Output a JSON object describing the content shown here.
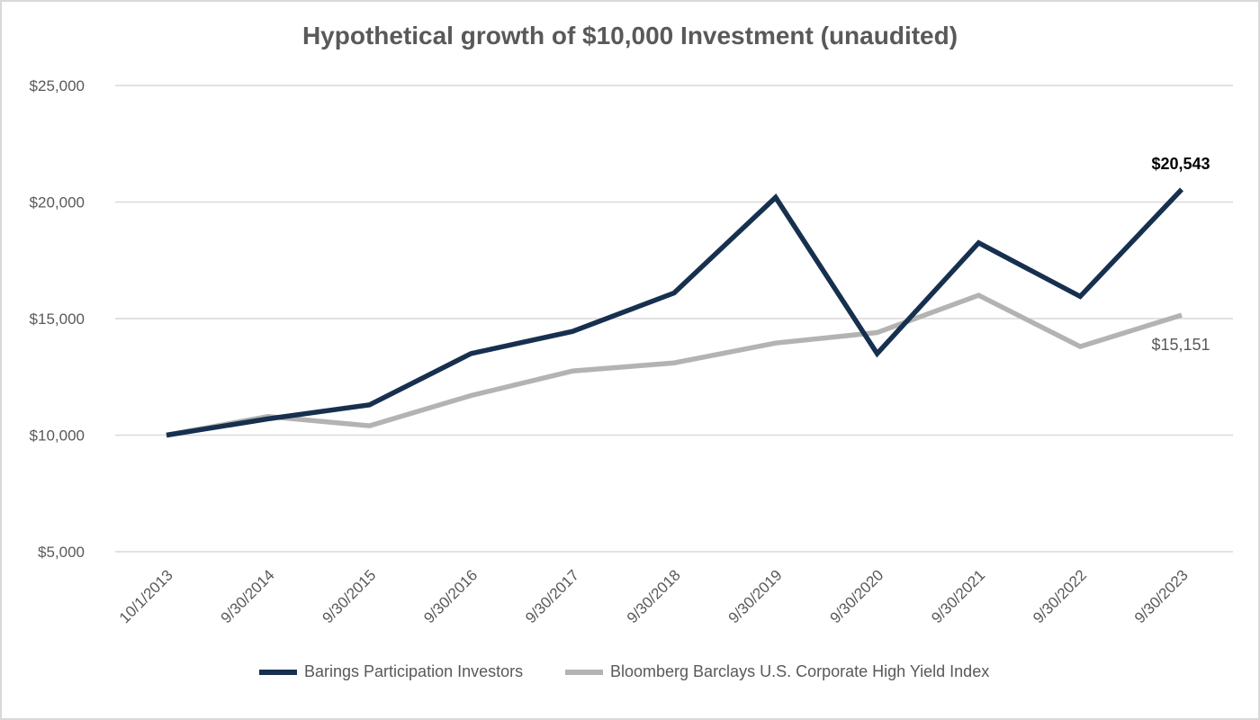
{
  "chart_data": {
    "type": "line",
    "title": "Hypothetical growth of $10,000 Investment (unaudited)",
    "xlabel": "",
    "ylabel": "",
    "ylim": [
      5000,
      25000
    ],
    "y_ticks": [
      5000,
      10000,
      15000,
      20000,
      25000
    ],
    "y_tick_labels": [
      "$5,000",
      "$10,000",
      "$15,000",
      "$20,000",
      "$25,000"
    ],
    "categories": [
      "10/1/2013",
      "9/30/2014",
      "9/30/2015",
      "9/30/2016",
      "9/30/2017",
      "9/30/2018",
      "9/30/2019",
      "9/30/2020",
      "9/30/2021",
      "9/30/2022",
      "9/30/2023"
    ],
    "grid": "horizontal",
    "legend_position": "bottom",
    "series": [
      {
        "name": "Barings Participation Investors",
        "color": "#17304f",
        "values": [
          10000,
          10700,
          11300,
          13500,
          14450,
          16100,
          20200,
          13500,
          18250,
          15950,
          20543
        ],
        "end_label": "$20,543"
      },
      {
        "name": "Bloomberg Barclays U.S. Corporate High Yield Index",
        "color": "#b3b3b3",
        "values": [
          10000,
          10800,
          10400,
          11700,
          12750,
          13100,
          13950,
          14400,
          16000,
          13800,
          15151
        ],
        "end_label": "$15,151"
      }
    ]
  }
}
